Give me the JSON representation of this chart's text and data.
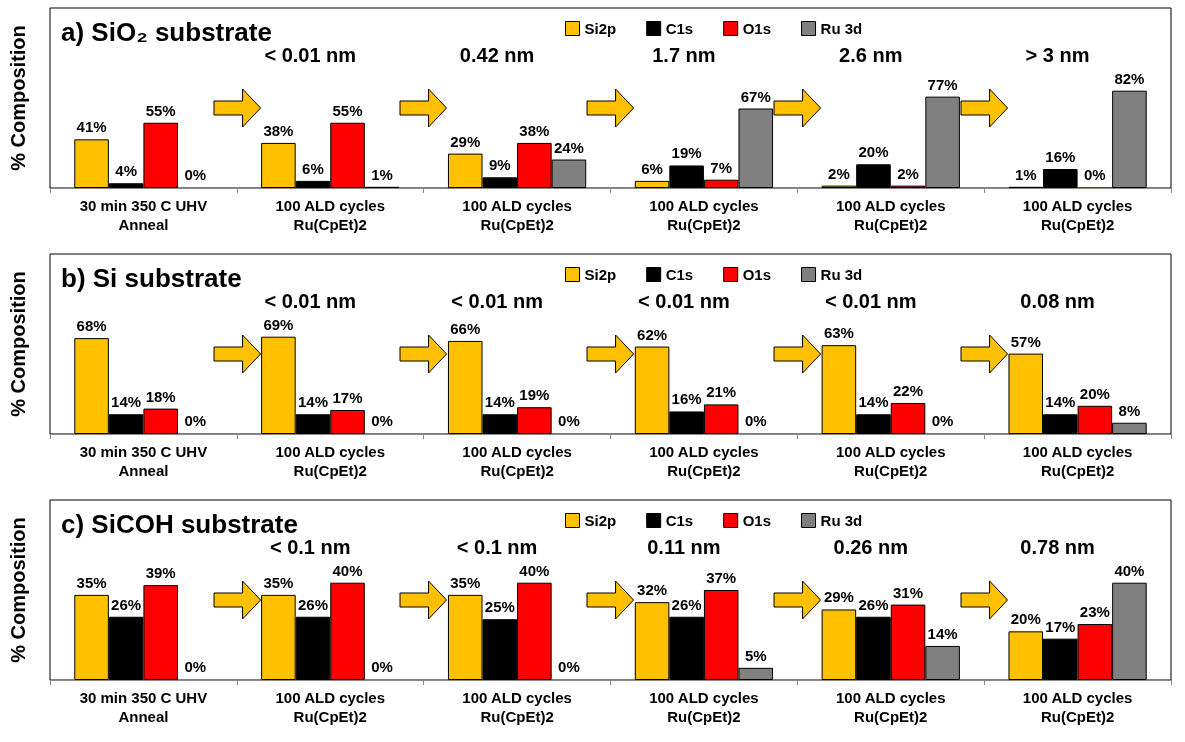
{
  "chart_data": [
    {
      "type": "bar",
      "title": "a) SiO₂ substrate",
      "ylabel": "% Composition",
      "categories": [
        "30 min 350 C UHV\nAnneal",
        "100 ALD cycles\nRu(CpEt)2",
        "100 ALD cycles\nRu(CpEt)2",
        "100 ALD cycles\nRu(CpEt)2",
        "100 ALD cycles\nRu(CpEt)2",
        "100 ALD cycles\nRu(CpEt)2"
      ],
      "series": [
        {
          "name": "Si2p",
          "color": "#ffc000",
          "values": [
            41,
            38,
            29,
            6,
            2,
            1
          ],
          "value_labels": [
            "41%",
            "38%",
            "29%",
            "6%",
            "2%",
            "1%"
          ]
        },
        {
          "name": "C1s",
          "color": "#000000",
          "values": [
            4,
            6,
            9,
            19,
            20,
            16
          ],
          "value_labels": [
            "4%",
            "6%",
            "9%",
            "19%",
            "20%",
            "16%"
          ]
        },
        {
          "name": "O1s",
          "color": "#ff0000",
          "values": [
            55,
            55,
            38,
            7,
            2,
            0
          ],
          "value_labels": [
            "55%",
            "55%",
            "38%",
            "7%",
            "2%",
            "0%"
          ]
        },
        {
          "name": "Ru 3d",
          "color": "#808080",
          "values": [
            0,
            1,
            24,
            67,
            77,
            82
          ],
          "value_labels": [
            "0%",
            "1%",
            "24%",
            "67%",
            "77%",
            "82%"
          ]
        }
      ],
      "annotations": [
        "< 0.01 nm",
        "0.42 nm",
        "1.7 nm",
        "2.6 nm",
        "> 3 nm"
      ],
      "tick_labels": "x",
      "legend": "top",
      "grid": false
    },
    {
      "type": "bar",
      "title": "b) Si substrate",
      "ylabel": "% Composition",
      "categories": [
        "30 min 350 C UHV\nAnneal",
        "100 ALD cycles\nRu(CpEt)2",
        "100 ALD cycles\nRu(CpEt)2",
        "100 ALD cycles\nRu(CpEt)2",
        "100 ALD cycles\nRu(CpEt)2",
        "100 ALD cycles\nRu(CpEt)2"
      ],
      "series": [
        {
          "name": "Si2p",
          "color": "#ffc000",
          "values": [
            68,
            69,
            66,
            62,
            63,
            57
          ],
          "value_labels": [
            "68%",
            "69%",
            "66%",
            "62%",
            "63%",
            "57%"
          ]
        },
        {
          "name": "C1s",
          "color": "#000000",
          "values": [
            14,
            14,
            14,
            16,
            14,
            14
          ],
          "value_labels": [
            "14%",
            "14%",
            "14%",
            "16%",
            "14%",
            "14%"
          ]
        },
        {
          "name": "O1s",
          "color": "#ff0000",
          "values": [
            18,
            17,
            19,
            21,
            22,
            20
          ],
          "value_labels": [
            "18%",
            "17%",
            "19%",
            "21%",
            "22%",
            "20%"
          ]
        },
        {
          "name": "Ru 3d",
          "color": "#808080",
          "values": [
            0,
            0,
            0,
            0,
            0,
            8
          ],
          "value_labels": [
            "0%",
            "0%",
            "0%",
            "0%",
            "0%",
            "8%"
          ]
        }
      ],
      "annotations": [
        "< 0.01 nm",
        "< 0.01 nm",
        "< 0.01 nm",
        "< 0.01 nm",
        "0.08 nm"
      ],
      "tick_labels": "x",
      "legend": "top",
      "grid": false
    },
    {
      "type": "bar",
      "title": "c) SiCOH substrate",
      "ylabel": "% Composition",
      "categories": [
        "30 min 350 C UHV\nAnneal",
        "100 ALD cycles\nRu(CpEt)2",
        "100 ALD cycles\nRu(CpEt)2",
        "100 ALD cycles\nRu(CpEt)2",
        "100 ALD cycles\nRu(CpEt)2",
        "100 ALD cycles\nRu(CpEt)2"
      ],
      "series": [
        {
          "name": "Si2p",
          "color": "#ffc000",
          "values": [
            35,
            35,
            35,
            32,
            29,
            20
          ],
          "value_labels": [
            "35%",
            "35%",
            "35%",
            "32%",
            "29%",
            "20%"
          ]
        },
        {
          "name": "C1s",
          "color": "#000000",
          "values": [
            26,
            26,
            25,
            26,
            26,
            17
          ],
          "value_labels": [
            "26%",
            "26%",
            "25%",
            "26%",
            "26%",
            "17%"
          ]
        },
        {
          "name": "O1s",
          "color": "#ff0000",
          "values": [
            39,
            40,
            40,
            37,
            31,
            23
          ],
          "value_labels": [
            "39%",
            "40%",
            "40%",
            "37%",
            "31%",
            "23%"
          ]
        },
        {
          "name": "Ru 3d",
          "color": "#808080",
          "values": [
            0,
            0,
            0,
            5,
            14,
            40
          ],
          "value_labels": [
            "0%",
            "0%",
            "0%",
            "5%",
            "14%",
            "40%"
          ]
        }
      ],
      "annotations": [
        "< 0.1 nm",
        "< 0.1 nm",
        "0.11 nm",
        "0.26 nm",
        "0.78 nm"
      ],
      "tick_labels": "x",
      "legend": "top",
      "grid": false
    }
  ]
}
